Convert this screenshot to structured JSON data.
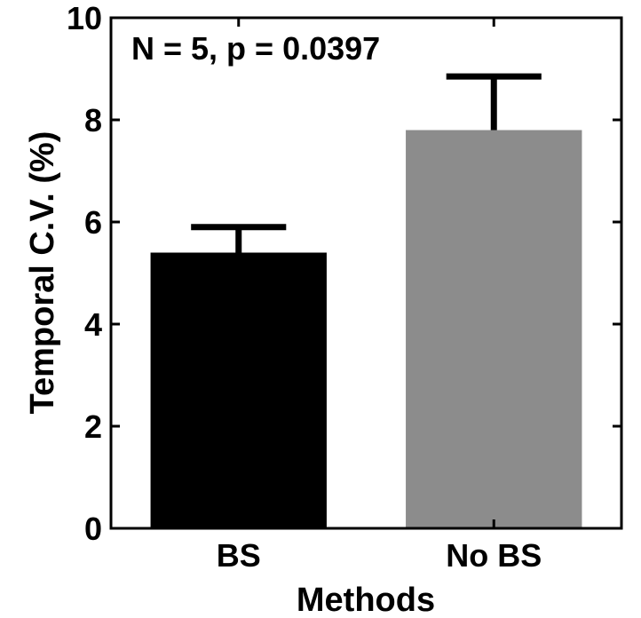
{
  "chart_data": {
    "type": "bar",
    "categories": [
      "BS",
      "No BS"
    ],
    "values": [
      5.4,
      7.8
    ],
    "errors": [
      0.5,
      1.05
    ],
    "colors": [
      "#000000",
      "#8c8c8c"
    ],
    "xlabel": "Methods",
    "ylabel": "Temporal C.V. (%)",
    "ylim": [
      0,
      10
    ],
    "yticks": [
      0,
      2,
      4,
      6,
      8,
      10
    ],
    "annotation": "N = 5, p = 0.0397",
    "grid": false,
    "legend": "none"
  }
}
